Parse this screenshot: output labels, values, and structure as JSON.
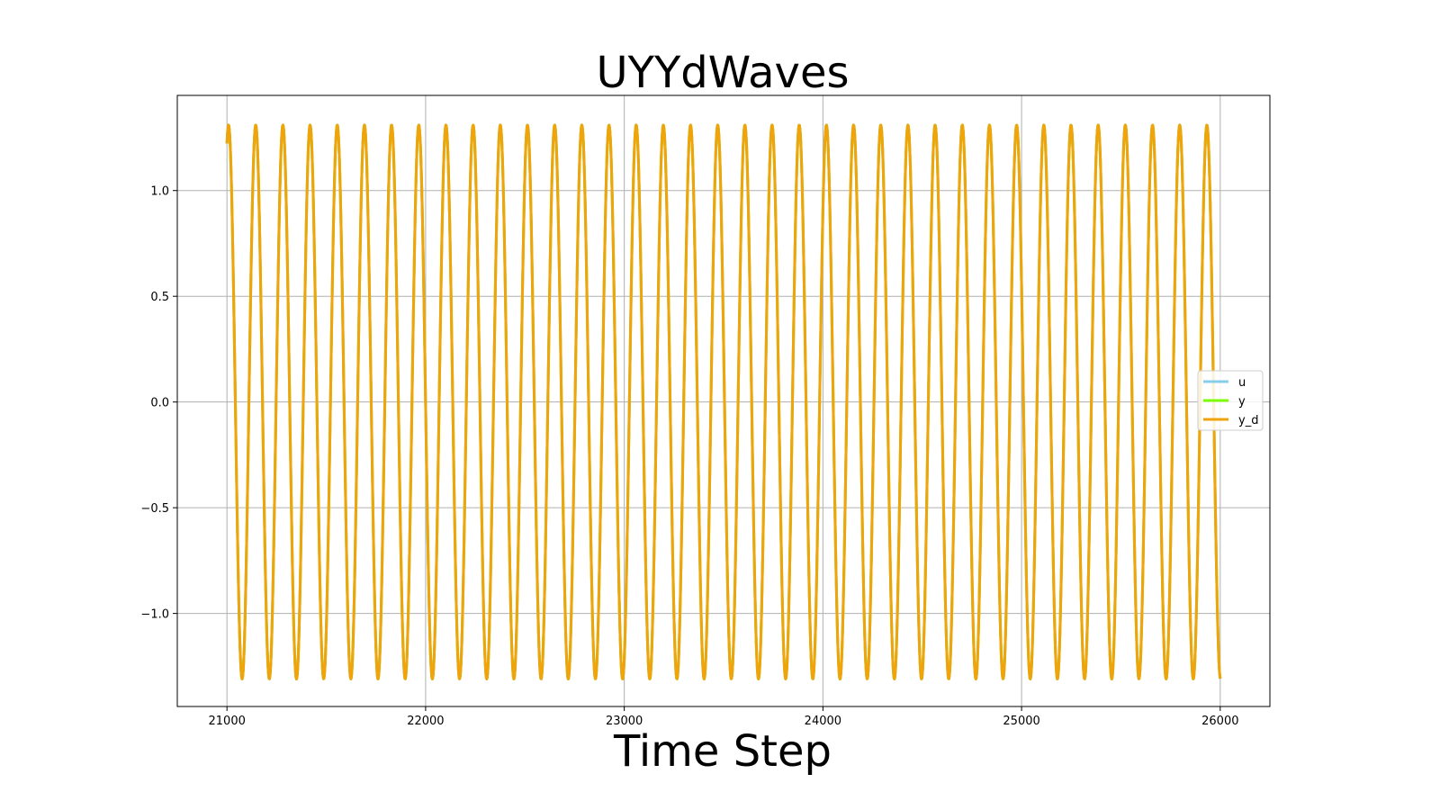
{
  "chart_data": {
    "type": "line",
    "title": "UYYdWaves",
    "xlabel": "Time Step",
    "ylabel": "",
    "xlim": [
      20750,
      26250
    ],
    "ylim": [
      -1.44,
      1.45
    ],
    "x_ticks": [
      21000,
      22000,
      23000,
      24000,
      25000,
      26000
    ],
    "y_ticks": [
      -1.0,
      -0.5,
      0.0,
      0.5,
      1.0
    ],
    "y_tick_labels": [
      "−1.0",
      "−0.5",
      "0.0",
      "0.5",
      "1.0"
    ],
    "grid": true,
    "legend_position": "center right",
    "x_range": [
      21000,
      26000
    ],
    "amplitude": 1.31,
    "period": 136.8,
    "series": [
      {
        "name": "u",
        "color": "#87ceeb",
        "formula": "1.31*cos(2*pi*(x-21008)/136.8)"
      },
      {
        "name": "y",
        "color": "#7cfc00",
        "formula": "1.31*cos(2*pi*(x-21008)/136.8)"
      },
      {
        "name": "y_d",
        "color": "#f0a30a",
        "formula": "1.31*cos(2*pi*(x-21008)/136.8)"
      }
    ]
  }
}
